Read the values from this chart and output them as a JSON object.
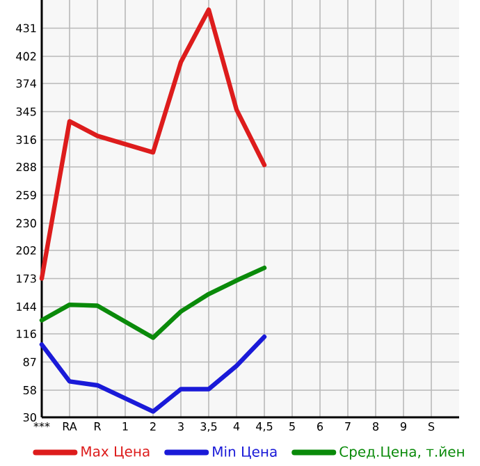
{
  "chart_data": {
    "type": "line",
    "categories": [
      "***",
      "RA",
      "R",
      "1",
      "2",
      "3",
      "3,5",
      "4",
      "4,5",
      "5",
      "6",
      "7",
      "8",
      "9",
      "S"
    ],
    "series": [
      {
        "name": "Max Цена",
        "color": "#dd1c1c",
        "values": [
          173,
          335,
          320,
          null,
          303,
          396,
          450,
          347,
          290,
          null,
          null,
          null,
          null,
          null,
          null
        ]
      },
      {
        "name": "Min Цена",
        "color": "#1a1ad8",
        "values": [
          105,
          67,
          63,
          null,
          36,
          59,
          59,
          83,
          113,
          null,
          null,
          null,
          null,
          null,
          null
        ]
      },
      {
        "name": "Сред.Цена, т.йен",
        "color": "#0a8a0a",
        "values": [
          130,
          146,
          145,
          null,
          112,
          139,
          157,
          171,
          184,
          null,
          null,
          null,
          null,
          null,
          null
        ]
      }
    ],
    "ylim": [
      30,
      460
    ],
    "yticks": [
      30,
      58,
      87,
      116,
      144,
      173,
      202,
      230,
      259,
      288,
      316,
      345,
      374,
      402,
      431
    ],
    "grid": true,
    "legend": "bottom",
    "marker": "none",
    "line_style": "solid"
  }
}
